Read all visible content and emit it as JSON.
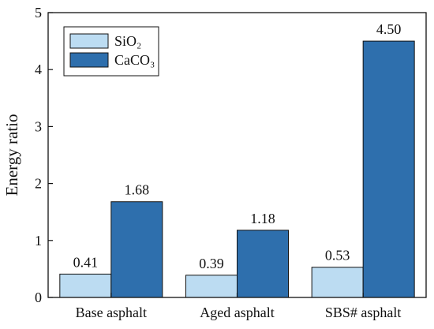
{
  "chart_data": {
    "type": "bar",
    "categories": [
      "Base asphalt",
      "Aged asphalt",
      "SBS# asphalt"
    ],
    "series": [
      {
        "name": "SiO₂",
        "values": [
          0.41,
          0.39,
          0.53
        ],
        "labels": [
          "0.41",
          "0.39",
          "0.53"
        ],
        "color": "#bcdcf2"
      },
      {
        "name": "CaCO₃",
        "values": [
          1.68,
          1.18,
          4.5
        ],
        "labels": [
          "1.68",
          "1.18",
          "4.50"
        ],
        "color": "#2e6fad"
      }
    ],
    "title": "",
    "xlabel": "",
    "ylabel": "Energy ratio",
    "ylim": [
      0,
      5
    ],
    "yticks": [
      0,
      1,
      2,
      3,
      4,
      5
    ],
    "grid": false,
    "legend_position": "top-left"
  }
}
